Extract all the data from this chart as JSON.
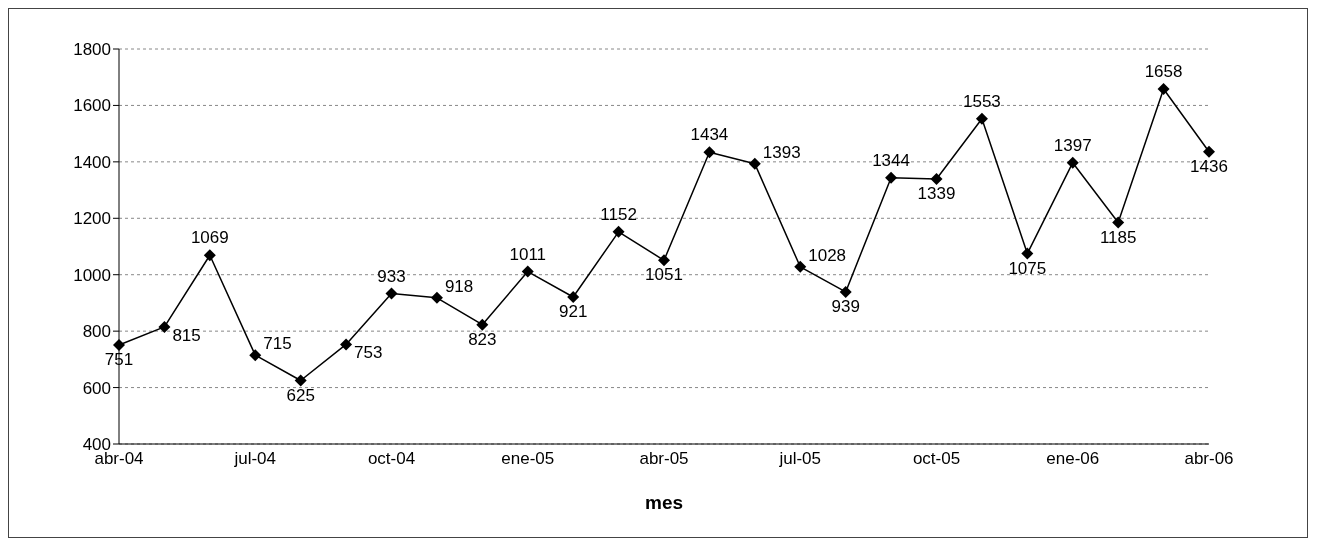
{
  "chart_data": {
    "type": "line",
    "xlabel": "mes",
    "categories": [
      "abr-04",
      null,
      null,
      "jul-04",
      null,
      null,
      "oct-04",
      null,
      null,
      "ene-05",
      null,
      null,
      "abr-05",
      null,
      null,
      "jul-05",
      null,
      null,
      "oct-05",
      null,
      null,
      "ene-06",
      null,
      null,
      "abr-06"
    ],
    "series": [
      {
        "color": "#000000",
        "values": [
          751,
          815,
          1069,
          715,
          625,
          753,
          933,
          918,
          823,
          1011,
          921,
          1152,
          1051,
          1434,
          1393,
          1028,
          939,
          1344,
          1339,
          1553,
          1075,
          1397,
          1185,
          1658,
          1436
        ]
      }
    ],
    "ylim": [
      400,
      1800
    ],
    "yticks": [
      400,
      600,
      800,
      1000,
      1200,
      1400,
      1600,
      1800
    ],
    "grid": "y",
    "legend": false,
    "marker": "diamond",
    "line_style": "solid",
    "data_labels": true
  }
}
